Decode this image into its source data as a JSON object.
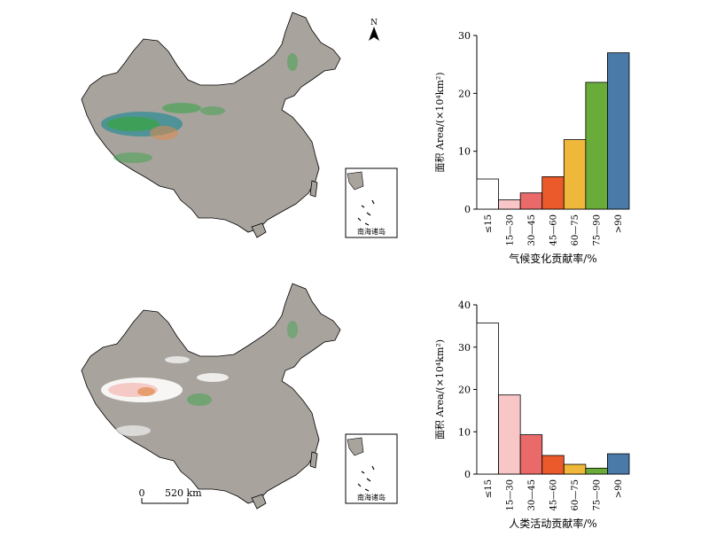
{
  "maps": {
    "north_label": "N",
    "inset_label": "南海诸岛",
    "scale_start": "0",
    "scale_end": "520 km",
    "colors": {
      "land": "#a8a39d",
      "outline": "#000000",
      "veg_green": "#3aa34a",
      "veg_teal": "#3f8f96",
      "veg_orange": "#e08a4a",
      "veg_pink": "#f4c4c0",
      "veg_white": "#ffffff"
    }
  },
  "chart_data": [
    {
      "type": "bar",
      "categories": [
        "≤15",
        "15—30",
        "30—45",
        "45—60",
        "60—75",
        "75—90",
        ">90"
      ],
      "values": [
        5.2,
        1.6,
        2.8,
        5.6,
        12.0,
        21.9,
        27.0
      ],
      "colors": [
        "#ffffff",
        "#f8c6c6",
        "#ea6a6a",
        "#ea5a2a",
        "#f0b83a",
        "#6aac3a",
        "#4a7aa8"
      ],
      "xlabel": "气候变化贡献率/%",
      "ylabel": "面积 Area/(×10⁴km²)",
      "yticks": [
        "0",
        "10",
        "20",
        "30"
      ],
      "ylim": [
        0,
        30
      ],
      "grid": false
    },
    {
      "type": "bar",
      "categories": [
        "≤15",
        "15—30",
        "30—45",
        "45—60",
        "60—75",
        "75—90",
        ">90"
      ],
      "values": [
        35.7,
        18.7,
        9.3,
        4.4,
        2.3,
        1.4,
        4.8
      ],
      "colors": [
        "#ffffff",
        "#f8c6c6",
        "#ea6a6a",
        "#ea5a2a",
        "#f0b83a",
        "#6aac3a",
        "#4a7aa8"
      ],
      "xlabel": "人类活动贡献率/%",
      "ylabel": "面积 Area/(×10⁴km²)",
      "yticks": [
        "0",
        "10",
        "20",
        "30",
        "40"
      ],
      "ylim": [
        0,
        40
      ],
      "grid": false
    }
  ]
}
